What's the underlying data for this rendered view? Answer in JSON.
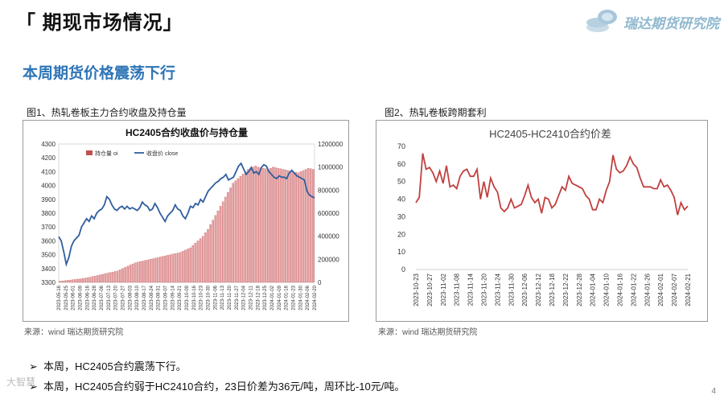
{
  "header": {
    "title": "「 期现市场情况」",
    "logo_text": "瑞达期货研究院",
    "subtitle": "本周期货价格震荡下行"
  },
  "figure1": {
    "caption": "图1、热轧卷板主力合约收盘及持仓量",
    "source": "来源：wind   瑞达期货研究院"
  },
  "figure2": {
    "caption": "图2、热轧卷板跨期套利",
    "source": "来源：wind   瑞达期货研究院"
  },
  "bullets": [
    "本周，HC2405合约震荡下行。",
    "本周，HC2405合约弱于HC2410合约，23日价差为36元/吨，周环比-10元/吨。"
  ],
  "watermark": "大智慧",
  "page_number": "4",
  "chart_data": [
    {
      "type": "bar+line",
      "title": "HC2405合约收盘价与持仓量",
      "legend": [
        "持仓量 oi",
        "收盘价 close"
      ],
      "legend_position": "top-left",
      "x_tick_labels": [
        "2023-05-16",
        "2023-05-25",
        "2023-06-01",
        "2023-06-09",
        "2023-06-16",
        "2023-06-28",
        "2023-07-06",
        "2023-07-13",
        "2023-07-20",
        "2023-07-27",
        "2023-08-03",
        "2023-08-10",
        "2023-08-17",
        "2023-08-24",
        "2023-08-31",
        "2023-09-07",
        "2023-09-14",
        "2023-09-21",
        "2023-10-09",
        "2023-10-16",
        "2023-10-23",
        "2023-10-30",
        "2023-11-06",
        "2023-11-13",
        "2023-11-20",
        "2023-11-27",
        "2023-12-04",
        "2023-12-11",
        "2023-12-18",
        "2023-12-25",
        "2024-01-02",
        "2024-01-09",
        "2024-01-16",
        "2024-01-23",
        "2024-01-30",
        "2024-02-06",
        "2024-02-20"
      ],
      "left_axis": {
        "min": 3300,
        "max": 4300,
        "ticks": [
          3300,
          3400,
          3500,
          3600,
          3700,
          3800,
          3900,
          4000,
          4100,
          4200,
          4300
        ]
      },
      "right_axis": {
        "min": 0,
        "max": 1200000,
        "ticks": [
          "0",
          "200000",
          "400000",
          "600000",
          "800000",
          "1000000",
          "1200000"
        ]
      },
      "close": [
        3630,
        3600,
        3520,
        3430,
        3480,
        3560,
        3600,
        3620,
        3640,
        3700,
        3730,
        3760,
        3740,
        3780,
        3760,
        3800,
        3820,
        3830,
        3860,
        3920,
        3900,
        3860,
        3830,
        3820,
        3840,
        3850,
        3830,
        3850,
        3830,
        3840,
        3830,
        3820,
        3840,
        3880,
        3860,
        3850,
        3820,
        3830,
        3870,
        3840,
        3800,
        3770,
        3740,
        3780,
        3800,
        3820,
        3860,
        3830,
        3820,
        3780,
        3760,
        3800,
        3850,
        3840,
        3870,
        3860,
        3900,
        3880,
        3920,
        3960,
        3980,
        4000,
        4020,
        4030,
        4050,
        4060,
        4080,
        4040,
        4050,
        4060,
        4100,
        4140,
        4160,
        4120,
        4080,
        4100,
        4130,
        4090,
        4100,
        4080,
        4130,
        4150,
        4140,
        4100,
        4080,
        4060,
        4050,
        4070,
        4060,
        4060,
        4050,
        4090,
        4110,
        4090,
        4070,
        4060,
        4050,
        4040,
        3960,
        3930,
        3920,
        3910
      ],
      "oi": [
        10000,
        12000,
        15000,
        18000,
        20000,
        22000,
        25000,
        28000,
        30000,
        33000,
        36000,
        40000,
        45000,
        50000,
        55000,
        60000,
        65000,
        70000,
        75000,
        80000,
        85000,
        90000,
        95000,
        100000,
        110000,
        120000,
        130000,
        140000,
        150000,
        160000,
        170000,
        175000,
        180000,
        185000,
        190000,
        195000,
        200000,
        205000,
        210000,
        215000,
        220000,
        225000,
        230000,
        235000,
        240000,
        245000,
        250000,
        255000,
        260000,
        270000,
        280000,
        290000,
        300000,
        320000,
        340000,
        360000,
        380000,
        400000,
        430000,
        460000,
        500000,
        540000,
        580000,
        620000,
        660000,
        700000,
        740000,
        780000,
        820000,
        860000,
        880000,
        900000,
        920000,
        940000,
        960000,
        980000,
        990000,
        1000000,
        1010000,
        1000000,
        995000,
        990000,
        985000,
        980000,
        990000,
        1000000,
        995000,
        990000,
        985000,
        980000,
        975000,
        970000,
        965000,
        960000,
        955000,
        950000,
        960000,
        970000,
        980000,
        990000,
        985000,
        980000
      ]
    },
    {
      "type": "line",
      "title": "HC2405-HC2410合约价差",
      "x_tick_labels": [
        "2023-10-23",
        "2023-10-27",
        "2023-11-02",
        "2023-11-08",
        "2023-11-14",
        "2023-11-20",
        "2023-11-24",
        "2023-11-30",
        "2023-12-06",
        "2023-12-12",
        "2023-12-18",
        "2023-12-22",
        "2023-12-28",
        "2024-01-04",
        "2024-01-10",
        "2024-01-16",
        "2024-01-22",
        "2024-01-26",
        "2024-02-01",
        "2024-02-07",
        "2024-02-21"
      ],
      "ylim": [
        0,
        70
      ],
      "y_ticks": [
        0,
        10,
        20,
        30,
        40,
        50,
        60,
        70
      ],
      "values": [
        38,
        41,
        66,
        57,
        58,
        55,
        50,
        56,
        49,
        59,
        47,
        48,
        46,
        53,
        56,
        57,
        53,
        53,
        57,
        40,
        50,
        41,
        52,
        47,
        44,
        35,
        33,
        35,
        40,
        35,
        36,
        37,
        42,
        48,
        41,
        38,
        40,
        32,
        41,
        40,
        35,
        37,
        42,
        47,
        45,
        53,
        49,
        48,
        47,
        46,
        42,
        40,
        34,
        34,
        40,
        38,
        45,
        50,
        65,
        57,
        55,
        56,
        59,
        64,
        60,
        58,
        52,
        47,
        47,
        47,
        46,
        46,
        51,
        47,
        48,
        45,
        41,
        31,
        38,
        34,
        36
      ]
    }
  ]
}
